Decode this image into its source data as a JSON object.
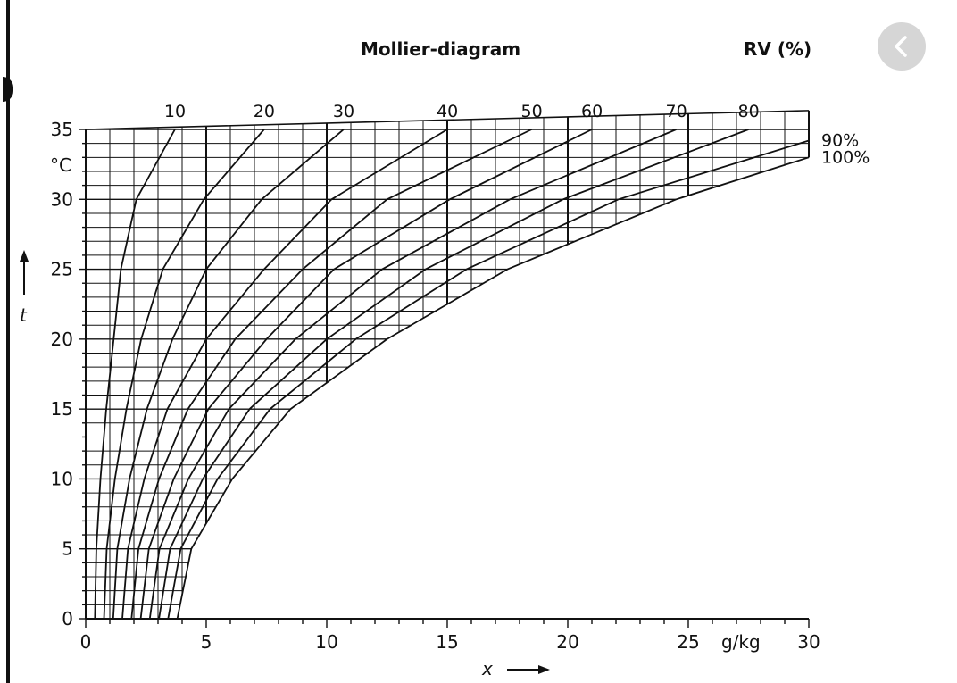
{
  "nav": {
    "back_icon": "chevron-left-icon"
  },
  "colors": {
    "line": "#111111",
    "button_bg": "#d6d6d6",
    "button_icon": "#ffffff"
  },
  "chart_data": {
    "type": "line",
    "title": "Mollier-diagram",
    "rh_header": "RV (%)",
    "xlabel": "x",
    "ylabel": "t",
    "x_unit": "g/kg",
    "y_unit": "°C",
    "xlim": [
      0,
      30
    ],
    "ylim": [
      0,
      35
    ],
    "x_ticks": [
      0,
      5,
      10,
      15,
      20,
      25,
      30
    ],
    "y_ticks": [
      0,
      5,
      10,
      15,
      20,
      25,
      30,
      35
    ],
    "grid": true,
    "series": [
      {
        "name": "10",
        "label": "10",
        "points": [
          [
            0.38,
            0
          ],
          [
            0.44,
            5
          ],
          [
            0.61,
            10
          ],
          [
            0.85,
            15
          ],
          [
            1.16,
            20
          ],
          [
            1.46,
            25
          ],
          [
            2.1,
            30
          ],
          [
            3.7,
            35
          ]
        ]
      },
      {
        "name": "20",
        "label": "20",
        "points": [
          [
            0.76,
            0
          ],
          [
            0.87,
            5
          ],
          [
            1.21,
            10
          ],
          [
            1.69,
            15
          ],
          [
            2.3,
            20
          ],
          [
            3.2,
            25
          ],
          [
            4.9,
            30
          ],
          [
            7.4,
            35
          ]
        ]
      },
      {
        "name": "30",
        "label": "30",
        "points": [
          [
            1.14,
            0
          ],
          [
            1.31,
            5
          ],
          [
            1.82,
            10
          ],
          [
            2.54,
            15
          ],
          [
            3.6,
            20
          ],
          [
            5.0,
            25
          ],
          [
            7.3,
            30
          ],
          [
            10.7,
            35
          ]
        ]
      },
      {
        "name": "40",
        "label": "40",
        "points": [
          [
            1.52,
            0
          ],
          [
            1.75,
            5
          ],
          [
            2.43,
            10
          ],
          [
            3.39,
            15
          ],
          [
            5.0,
            20
          ],
          [
            7.4,
            25
          ],
          [
            10.2,
            30
          ],
          [
            15.0,
            35
          ]
        ]
      },
      {
        "name": "50",
        "label": "50",
        "points": [
          [
            1.9,
            0
          ],
          [
            2.19,
            5
          ],
          [
            3.04,
            10
          ],
          [
            4.24,
            15
          ],
          [
            6.2,
            20
          ],
          [
            9.0,
            25
          ],
          [
            12.5,
            30
          ],
          [
            18.5,
            35
          ]
        ]
      },
      {
        "name": "60",
        "label": "60",
        "points": [
          [
            2.28,
            0
          ],
          [
            2.62,
            5
          ],
          [
            3.65,
            10
          ],
          [
            5.09,
            15
          ],
          [
            7.5,
            20
          ],
          [
            10.3,
            25
          ],
          [
            15.1,
            30
          ],
          [
            21.0,
            35
          ]
        ]
      },
      {
        "name": "70",
        "label": "70",
        "points": [
          [
            2.66,
            0
          ],
          [
            3.06,
            5
          ],
          [
            4.26,
            10
          ],
          [
            5.94,
            15
          ],
          [
            8.7,
            20
          ],
          [
            12.3,
            25
          ],
          [
            17.6,
            30
          ],
          [
            24.5,
            35
          ]
        ]
      },
      {
        "name": "80",
        "label": "80",
        "points": [
          [
            3.04,
            0
          ],
          [
            3.5,
            5
          ],
          [
            4.86,
            10
          ],
          [
            6.8,
            15
          ],
          [
            10.0,
            20
          ],
          [
            14.1,
            25
          ],
          [
            19.8,
            30
          ],
          [
            27.5,
            35
          ]
        ]
      },
      {
        "name": "90%",
        "label": "90%",
        "points": [
          [
            3.42,
            0
          ],
          [
            3.94,
            5
          ],
          [
            5.47,
            10
          ],
          [
            7.65,
            15
          ],
          [
            11.2,
            20
          ],
          [
            15.8,
            25
          ],
          [
            22.1,
            30
          ],
          [
            30.0,
            34.2
          ]
        ]
      },
      {
        "name": "100%",
        "label": "100%",
        "points": [
          [
            3.8,
            0
          ],
          [
            4.38,
            5
          ],
          [
            6.08,
            10
          ],
          [
            8.5,
            15
          ],
          [
            12.5,
            20
          ],
          [
            17.5,
            25
          ],
          [
            24.5,
            30
          ],
          [
            30.0,
            33.0
          ]
        ]
      }
    ]
  }
}
